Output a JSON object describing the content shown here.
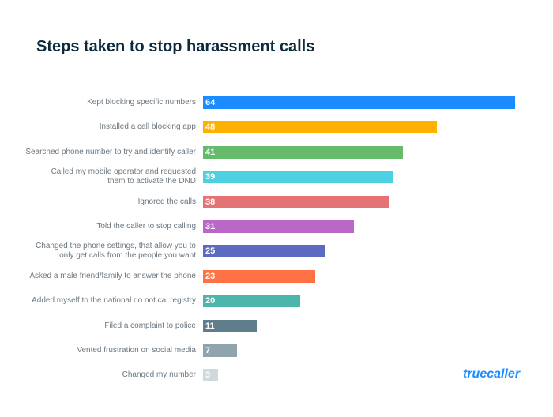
{
  "chart_data": {
    "type": "bar",
    "orientation": "horizontal",
    "title": "Steps taken to stop harassment calls",
    "categories": [
      "Kept blocking specific numbers",
      "Installed a call blocking app",
      "Searched phone number to try and identify caller",
      "Called my mobile operator and requested\nthem to activate the DND",
      "Ignored the calls",
      "Told the caller to stop calling",
      "Changed the phone settings, that allow you to\nonly get calls from the people you want",
      "Asked a male friend/family to answer the phone",
      "Added myself to the national do not cal registry",
      "Filed a complaint to police",
      "Vented frustration on social media",
      "Changed my number"
    ],
    "values": [
      64,
      48,
      41,
      39,
      38,
      31,
      25,
      23,
      20,
      11,
      7,
      3
    ],
    "colors": [
      "#1a8cff",
      "#ffb000",
      "#66bb6a",
      "#4dd0e1",
      "#e57373",
      "#ba68c8",
      "#5c6bc0",
      "#ff7043",
      "#4db6ac",
      "#607d8b",
      "#90a4ae",
      "#cfd8dc"
    ],
    "logo": "truecaller"
  }
}
